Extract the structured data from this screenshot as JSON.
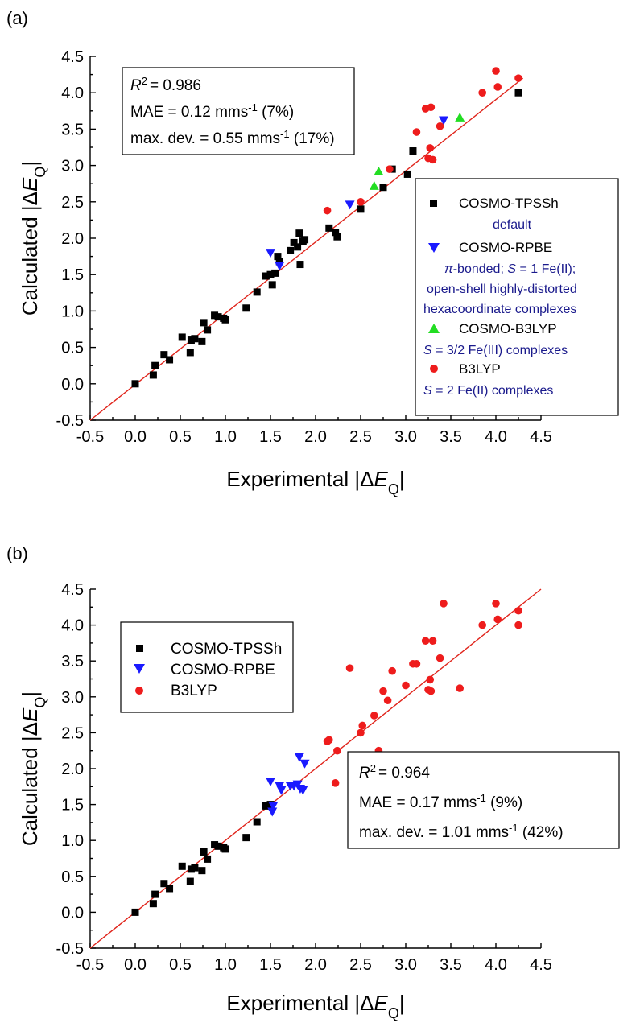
{
  "colors": {
    "cosmo_tpssh": "#000000",
    "cosmo_rpbe": "#1a1aff",
    "cosmo_b3lyp": "#22dd22",
    "b3lyp": "#ee1c1c",
    "fit_line": "#e0241b",
    "note_text": "#1a1a8c"
  },
  "chart_data": [
    {
      "type": "scatter",
      "panel_label": "(a)",
      "xlabel": "Experimental |ΔE_Q|",
      "ylabel": "Calculated |ΔE_Q|",
      "xlim": [
        -0.5,
        4.5
      ],
      "ylim": [
        -0.5,
        4.5
      ],
      "ticks": [
        "-0.5",
        "0.0",
        "0.5",
        "1.0",
        "1.5",
        "2.0",
        "2.5",
        "3.0",
        "3.5",
        "4.0",
        "4.5"
      ],
      "grid": false,
      "fit_line": {
        "x": [
          -0.5,
          4.3
        ],
        "y": [
          -0.5,
          4.2
        ]
      },
      "stats": {
        "r2": "= 0.986",
        "mae_a": "MAE = 0.12 mms",
        "mae_b": " (7%)",
        "dev_a": "max. dev. = 0.55 mms",
        "dev_b": " (17%)",
        "sup": "-1",
        "r_label": "R",
        "r_sup": "2"
      },
      "legend": {
        "placement": "right",
        "entries": [
          {
            "name": "COSMO-TPSSh",
            "marker": "square"
          },
          {
            "name": "COSMO-RPBE",
            "marker": "triangle-down"
          },
          {
            "name": "COSMO-B3LYP",
            "marker": "triangle-up"
          },
          {
            "name": "B3LYP",
            "marker": "circle"
          }
        ],
        "notes": {
          "tpssh": "default",
          "rpbe_pi": "π",
          "rpbe_1": "-bonded; ",
          "rpbe_s": "S",
          "rpbe_2": " = 1 Fe(II);",
          "rpbe_3": "open-shell highly-distorted",
          "rpbe_4": "hexacoordinate complexes",
          "b3_s": "S",
          "b3_1": " = 3/2 Fe(III) complexes",
          "b_s": "S",
          "b_1": " = 2 Fe(II) complexes"
        }
      },
      "series": [
        {
          "name": "COSMO-TPSSh",
          "x": [
            0.0,
            0.2,
            0.22,
            0.32,
            0.38,
            0.52,
            0.61,
            0.62,
            0.66,
            0.74,
            0.76,
            0.8,
            0.88,
            0.92,
            0.98,
            1.0,
            1.23,
            1.35,
            1.45,
            1.5,
            1.52,
            1.55,
            1.58,
            1.6,
            1.72,
            1.76,
            1.8,
            1.82,
            1.83,
            1.86,
            1.88,
            2.15,
            2.22,
            2.24,
            2.5,
            2.75,
            2.85,
            3.02,
            3.08,
            4.25
          ],
          "y": [
            0.0,
            0.12,
            0.25,
            0.4,
            0.33,
            0.64,
            0.43,
            0.6,
            0.62,
            0.58,
            0.84,
            0.74,
            0.94,
            0.92,
            0.9,
            0.88,
            1.04,
            1.26,
            1.48,
            1.5,
            1.36,
            1.52,
            1.75,
            1.68,
            1.83,
            1.94,
            1.88,
            2.07,
            1.64,
            1.96,
            1.98,
            2.14,
            2.08,
            2.02,
            2.4,
            2.7,
            2.95,
            2.88,
            3.2,
            4.0
          ]
        },
        {
          "name": "COSMO-RPBE",
          "x": [
            1.5,
            1.6,
            2.38,
            3.42
          ],
          "y": [
            1.8,
            1.62,
            2.46,
            3.62
          ]
        },
        {
          "name": "COSMO-B3LYP",
          "x": [
            2.65,
            2.7,
            3.6
          ],
          "y": [
            2.72,
            2.92,
            3.66
          ]
        },
        {
          "name": "B3LYP",
          "x": [
            2.13,
            2.5,
            2.82,
            3.12,
            3.22,
            3.28,
            3.3,
            3.25,
            3.27,
            3.38,
            3.85,
            4.0,
            4.02,
            4.25
          ],
          "y": [
            2.38,
            2.5,
            2.95,
            3.46,
            3.78,
            3.8,
            3.08,
            3.1,
            3.24,
            3.54,
            4.0,
            4.3,
            4.08,
            4.2
          ]
        }
      ]
    },
    {
      "type": "scatter",
      "panel_label": "(b)",
      "xlabel": "Experimental |ΔE_Q|",
      "ylabel": "Calculated |ΔE_Q|",
      "xlim": [
        -0.5,
        4.5
      ],
      "ylim": [
        -0.5,
        4.5
      ],
      "ticks": [
        "-0.5",
        "0.0",
        "0.5",
        "1.0",
        "1.5",
        "2.0",
        "2.5",
        "3.0",
        "3.5",
        "4.0",
        "4.5"
      ],
      "grid": false,
      "fit_line": {
        "x": [
          -0.5,
          4.5
        ],
        "y": [
          -0.5,
          4.5
        ]
      },
      "stats": {
        "r2": "= 0.964",
        "mae_a": "MAE = 0.17 mms",
        "mae_b": " (9%)",
        "dev_a": "max. dev. = 1.01 mms",
        "dev_b": " (42%)",
        "sup": "-1",
        "r_label": "R",
        "r_sup": "2"
      },
      "legend": {
        "placement": "top-left",
        "entries": [
          {
            "name": "COSMO-TPSSh",
            "marker": "square"
          },
          {
            "name": "COSMO-RPBE",
            "marker": "triangle-down"
          },
          {
            "name": "B3LYP",
            "marker": "circle"
          }
        ]
      },
      "series": [
        {
          "name": "COSMO-TPSSh",
          "x": [
            0.0,
            0.2,
            0.22,
            0.32,
            0.38,
            0.52,
            0.61,
            0.62,
            0.66,
            0.74,
            0.76,
            0.8,
            0.88,
            0.92,
            0.98,
            1.0,
            1.23,
            1.35,
            1.45,
            1.5
          ],
          "y": [
            0.0,
            0.12,
            0.25,
            0.4,
            0.33,
            0.64,
            0.43,
            0.6,
            0.62,
            0.58,
            0.84,
            0.74,
            0.94,
            0.92,
            0.9,
            0.88,
            1.04,
            1.26,
            1.48,
            1.5
          ]
        },
        {
          "name": "COSMO-RPBE",
          "x": [
            1.5,
            1.52,
            1.53,
            1.6,
            1.62,
            1.72,
            1.76,
            1.8,
            1.82,
            1.83,
            1.86,
            1.88
          ],
          "y": [
            1.82,
            1.4,
            1.48,
            1.76,
            1.7,
            1.76,
            1.76,
            1.78,
            2.16,
            1.72,
            1.7,
            2.07
          ]
        },
        {
          "name": "B3LYP",
          "x": [
            2.13,
            2.15,
            2.22,
            2.24,
            2.38,
            2.5,
            2.52,
            2.65,
            2.7,
            2.75,
            2.8,
            2.85,
            3.0,
            3.08,
            3.12,
            3.22,
            3.25,
            3.27,
            3.28,
            3.3,
            3.38,
            3.42,
            3.6,
            3.85,
            4.0,
            4.02,
            4.25,
            4.25
          ],
          "y": [
            2.38,
            2.4,
            1.8,
            2.25,
            3.4,
            2.5,
            2.6,
            2.74,
            2.25,
            3.08,
            2.95,
            3.36,
            3.16,
            3.46,
            3.46,
            3.78,
            3.1,
            3.24,
            3.08,
            3.78,
            3.54,
            4.3,
            3.12,
            4.0,
            4.3,
            4.08,
            4.2,
            4.0
          ]
        }
      ]
    }
  ]
}
